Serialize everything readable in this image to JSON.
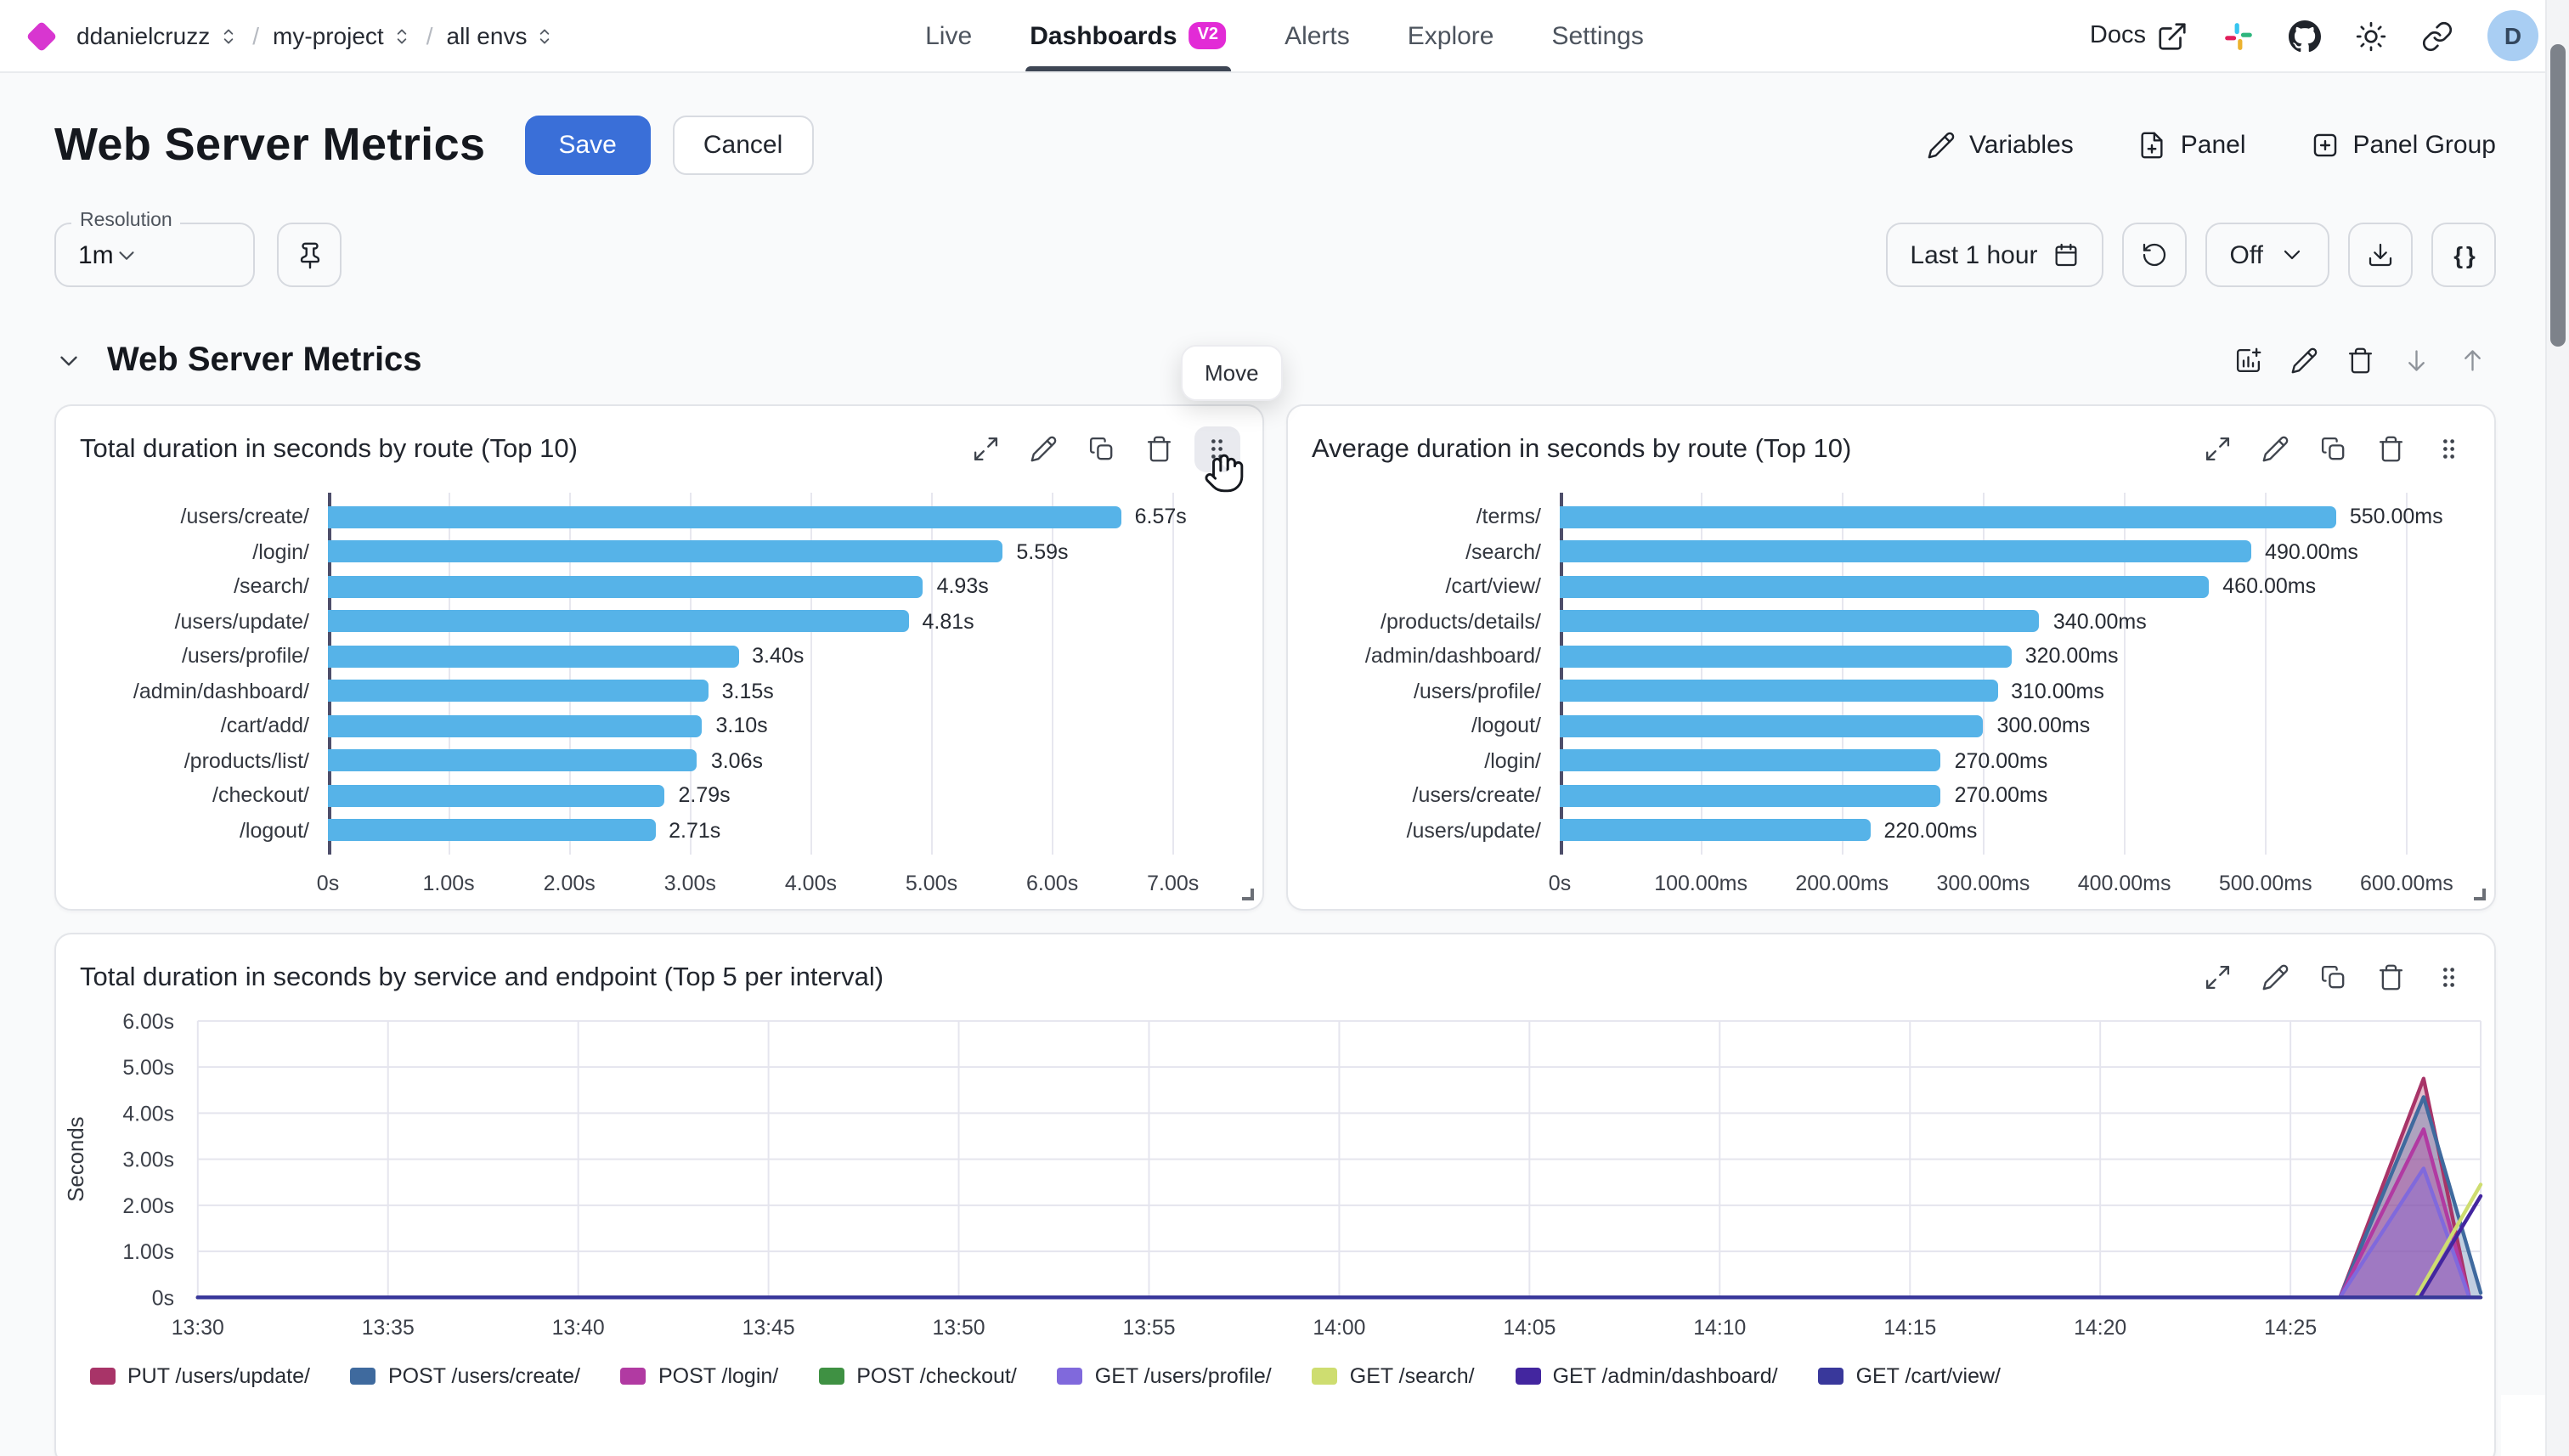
{
  "nav": {
    "breadcrumb": [
      "ddanielcruzz",
      "my-project",
      "all envs"
    ],
    "tabs": [
      {
        "label": "Live",
        "active": false
      },
      {
        "label": "Dashboards",
        "active": true,
        "badge": "V2"
      },
      {
        "label": "Alerts",
        "active": false
      },
      {
        "label": "Explore",
        "active": false
      },
      {
        "label": "Settings",
        "active": false
      }
    ],
    "docs_label": "Docs",
    "avatar_initial": "D"
  },
  "header": {
    "title": "Web Server Metrics",
    "save_label": "Save",
    "cancel_label": "Cancel",
    "actions": [
      {
        "label": "Variables",
        "icon": "pencil-icon"
      },
      {
        "label": "Panel",
        "icon": "file-plus-icon"
      },
      {
        "label": "Panel Group",
        "icon": "square-plus-icon"
      }
    ]
  },
  "controls": {
    "resolution_label": "Resolution",
    "resolution_value": "1m",
    "time_range_label": "Last 1 hour",
    "refresh_off_label": "Off",
    "braces_label": "{ }"
  },
  "section": {
    "title": "Web Server Metrics",
    "move_tooltip": "Move"
  },
  "colors": {
    "accent_magenta": "#d836d0",
    "save_blue": "#3a6fd8",
    "bar_blue": "#56b3e8"
  },
  "chart_data": [
    {
      "type": "bar",
      "orientation": "horizontal",
      "title": "Total duration in seconds by route (Top 10)",
      "categories": [
        "/users/create/",
        "/login/",
        "/search/",
        "/users/update/",
        "/users/profile/",
        "/admin/dashboard/",
        "/cart/add/",
        "/products/list/",
        "/checkout/",
        "/logout/"
      ],
      "values": [
        6.57,
        5.59,
        4.93,
        4.81,
        3.4,
        3.15,
        3.1,
        3.06,
        2.79,
        2.71
      ],
      "value_labels": [
        "6.57s",
        "5.59s",
        "4.93s",
        "4.81s",
        "3.40s",
        "3.15s",
        "3.10s",
        "3.06s",
        "2.79s",
        "2.71s"
      ],
      "axis_ticks": [
        {
          "v": 0,
          "label": "0s"
        },
        {
          "v": 1,
          "label": "1.00s"
        },
        {
          "v": 2,
          "label": "2.00s"
        },
        {
          "v": 3,
          "label": "3.00s"
        },
        {
          "v": 4,
          "label": "4.00s"
        },
        {
          "v": 5,
          "label": "5.00s"
        },
        {
          "v": 6,
          "label": "6.00s"
        },
        {
          "v": 7,
          "label": "7.00s"
        }
      ],
      "axis_max": 7.6,
      "bar_color": "#56b3e8",
      "grid": true
    },
    {
      "type": "bar",
      "orientation": "horizontal",
      "title": "Average duration in seconds by route (Top 10)",
      "categories": [
        "/terms/",
        "/search/",
        "/cart/view/",
        "/products/details/",
        "/admin/dashboard/",
        "/users/profile/",
        "/logout/",
        "/login/",
        "/users/create/",
        "/users/update/"
      ],
      "values": [
        550,
        490,
        460,
        340,
        320,
        310,
        300,
        270,
        270,
        220
      ],
      "value_labels": [
        "550.00ms",
        "490.00ms",
        "460.00ms",
        "340.00ms",
        "320.00ms",
        "310.00ms",
        "300.00ms",
        "270.00ms",
        "270.00ms",
        "220.00ms"
      ],
      "axis_ticks": [
        {
          "v": 0,
          "label": "0s"
        },
        {
          "v": 100,
          "label": "100.00ms"
        },
        {
          "v": 200,
          "label": "200.00ms"
        },
        {
          "v": 300,
          "label": "300.00ms"
        },
        {
          "v": 400,
          "label": "400.00ms"
        },
        {
          "v": 500,
          "label": "500.00ms"
        },
        {
          "v": 600,
          "label": "600.00ms"
        }
      ],
      "axis_max": 650,
      "bar_color": "#56b3e8",
      "grid": true
    },
    {
      "type": "area",
      "title": "Total duration in seconds by service and endpoint (Top 5 per interval)",
      "ylabel": "Seconds",
      "ylim": [
        0,
        6
      ],
      "x_max_minutes": 60,
      "grid": true,
      "legend_position": "bottom",
      "yticks": [
        {
          "v": 0,
          "label": "0s"
        },
        {
          "v": 1,
          "label": "1.00s"
        },
        {
          "v": 2,
          "label": "2.00s"
        },
        {
          "v": 3,
          "label": "3.00s"
        },
        {
          "v": 4,
          "label": "4.00s"
        },
        {
          "v": 5,
          "label": "5.00s"
        },
        {
          "v": 6,
          "label": "6.00s"
        }
      ],
      "xticks": [
        {
          "m": 0,
          "label": "13:30"
        },
        {
          "m": 5,
          "label": "13:35"
        },
        {
          "m": 10,
          "label": "13:40"
        },
        {
          "m": 15,
          "label": "13:45"
        },
        {
          "m": 20,
          "label": "13:50"
        },
        {
          "m": 25,
          "label": "13:55"
        },
        {
          "m": 30,
          "label": "14:00"
        },
        {
          "m": 35,
          "label": "14:05"
        },
        {
          "m": 40,
          "label": "14:10"
        },
        {
          "m": 45,
          "label": "14:15"
        },
        {
          "m": 50,
          "label": "14:20"
        },
        {
          "m": 55,
          "label": "14:25"
        }
      ],
      "series": [
        {
          "name": "PUT /users/update/",
          "color": "#a83468",
          "fill": true,
          "points": [
            [
              0,
              0
            ],
            [
              56.3,
              0
            ],
            [
              58.5,
              4.75
            ],
            [
              59.7,
              0
            ]
          ]
        },
        {
          "name": "POST /users/create/",
          "color": "#3f6a9e",
          "fill": true,
          "points": [
            [
              0,
              0
            ],
            [
              56.3,
              0
            ],
            [
              58.5,
              4.35
            ],
            [
              60,
              0.1
            ]
          ]
        },
        {
          "name": "POST /login/",
          "color": "#b13aa2",
          "fill": true,
          "points": [
            [
              0,
              0
            ],
            [
              56.3,
              0
            ],
            [
              58.5,
              3.65
            ],
            [
              59.7,
              0
            ]
          ]
        },
        {
          "name": "POST /checkout/",
          "color": "#3f9143",
          "fill": false,
          "points": [
            [
              0,
              0
            ],
            [
              60,
              0
            ]
          ]
        },
        {
          "name": "GET /users/profile/",
          "color": "#8069dc",
          "fill": true,
          "points": [
            [
              0,
              0
            ],
            [
              56.3,
              0
            ],
            [
              58.5,
              2.8
            ],
            [
              59.7,
              0
            ]
          ]
        },
        {
          "name": "GET /search/",
          "color": "#cedd70",
          "fill": false,
          "points": [
            [
              0,
              0
            ],
            [
              58.3,
              0
            ],
            [
              60,
              2.45
            ]
          ]
        },
        {
          "name": "GET /admin/dashboard/",
          "color": "#43269f",
          "fill": false,
          "points": [
            [
              0,
              0
            ],
            [
              58.4,
              0
            ],
            [
              60,
              2.2
            ]
          ]
        },
        {
          "name": "GET /cart/view/",
          "color": "#39389b",
          "fill": false,
          "points": [
            [
              0,
              0
            ],
            [
              60,
              0
            ]
          ]
        }
      ]
    }
  ]
}
